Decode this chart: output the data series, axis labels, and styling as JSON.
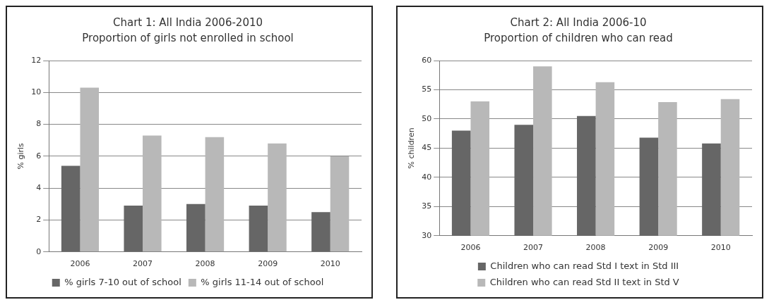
{
  "chart_data": [
    {
      "type": "bar",
      "title": "Chart 1: All India 2006-2010",
      "subtitle": "Proportion of girls not enrolled in school",
      "ylabel": "% girls",
      "categories": [
        "2006",
        "2007",
        "2008",
        "2009",
        "2010"
      ],
      "series": [
        {
          "name": "% girls 7-10 out of school",
          "color": "#666666",
          "values": [
            5.4,
            2.9,
            3.0,
            2.9,
            2.5
          ]
        },
        {
          "name": "% girls 11-14 out of school",
          "color": "#b8b8b8",
          "values": [
            10.3,
            7.3,
            7.2,
            6.8,
            6.0
          ]
        }
      ],
      "ylim": [
        0,
        12
      ],
      "yticks": [
        0,
        2,
        4,
        6,
        8,
        10,
        12
      ],
      "grid": "y",
      "legend": "bottom"
    },
    {
      "type": "bar",
      "title": "Chart 2: All India 2006-10",
      "subtitle": "Proportion of children who can read",
      "ylabel": "% children",
      "categories": [
        "2006",
        "2007",
        "2008",
        "2009",
        "2010"
      ],
      "series": [
        {
          "name": "Children who can read Std I text in Std III",
          "color": "#666666",
          "values": [
            48.0,
            49.0,
            50.5,
            46.8,
            45.8
          ]
        },
        {
          "name": "Children who can read Std II text in Std V",
          "color": "#b8b8b8",
          "values": [
            53.0,
            59.0,
            56.3,
            52.9,
            53.4
          ]
        }
      ],
      "ylim": [
        30,
        60
      ],
      "yticks": [
        30,
        35,
        40,
        45,
        50,
        55,
        60
      ],
      "grid": "y",
      "legend": "bottom"
    }
  ]
}
